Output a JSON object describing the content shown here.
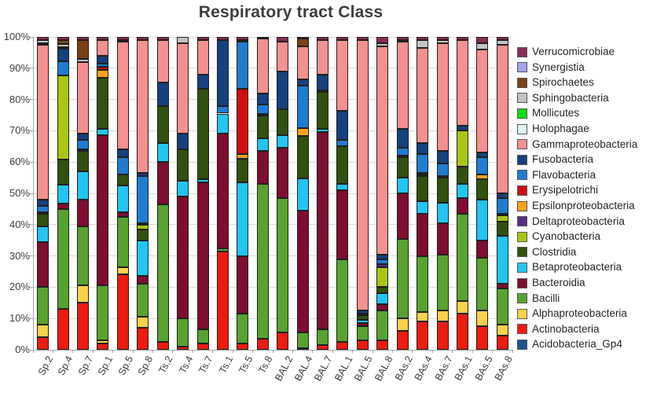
{
  "title": "Respiratory tract Class",
  "chart_data": {
    "type": "bar",
    "stacked": true,
    "unit": "percent",
    "title": "Respiratory tract Class",
    "xlabel": "",
    "ylabel": "",
    "ylim": [
      0,
      100
    ],
    "grid": true,
    "legend_position": "right",
    "y_ticks": [
      "0%",
      "10%",
      "20%",
      "30%",
      "40%",
      "50%",
      "60%",
      "70%",
      "80%",
      "90%",
      "100%"
    ],
    "categories": [
      "Sp.2",
      "Sp.4",
      "Sp.7",
      "Sp.1",
      "Sp.5",
      "Sp.8",
      "Ts.2",
      "Ts.4",
      "Ts.7",
      "Ts.1",
      "Ts.5",
      "Ts.8",
      "BAL.2",
      "BAL.4",
      "BAL.7",
      "BAL.1",
      "BAL.5",
      "BAL.8",
      "BAs.2",
      "BAs.4",
      "BAs.7",
      "BAs.1",
      "BAs.5",
      "BAs.8"
    ],
    "series_note": "series listed in stacking order bottom-to-top; legend displays reverse order; values are percent per sample",
    "series": [
      {
        "name": "Acidobacteria_Gp4",
        "color": "#1A5590",
        "values": [
          0,
          0,
          0,
          0,
          0,
          0,
          0,
          0,
          0,
          0,
          0,
          0,
          0,
          0,
          0,
          0,
          0,
          0,
          0,
          0,
          0,
          0,
          0,
          0
        ]
      },
      {
        "name": "Actinobacteria",
        "color": "#EE1B0F",
        "values": [
          4,
          13,
          15,
          2,
          24,
          7,
          2.5,
          1,
          2,
          31.5,
          2,
          3.5,
          5.5,
          0.5,
          1.5,
          2.5,
          3,
          3,
          6,
          9,
          9,
          11.5,
          7.5,
          4.5
        ]
      },
      {
        "name": "Alphaproteobacteria",
        "color": "#FAD14A",
        "values": [
          4,
          0,
          5.5,
          1,
          2.5,
          3.5,
          0,
          0,
          0,
          0,
          0,
          0,
          0,
          0,
          0,
          0,
          0,
          0,
          4,
          3,
          3.5,
          4,
          5,
          3.5
        ]
      },
      {
        "name": "Bacilli",
        "color": "#58A32F",
        "values": [
          12,
          32,
          19,
          17.5,
          16,
          10.5,
          44,
          9,
          4.5,
          1,
          9.5,
          49.5,
          43,
          5,
          5,
          26.5,
          4.5,
          9.5,
          25.5,
          18,
          18,
          28,
          17,
          11.5
        ]
      },
      {
        "name": "Bacteroidia",
        "color": "#7E0E2F",
        "values": [
          14.5,
          1.8,
          8.5,
          48,
          1.5,
          2.5,
          13.5,
          39,
          47,
          36.5,
          18.5,
          10.5,
          16,
          39,
          63,
          22,
          1,
          2,
          14.5,
          13.5,
          10,
          5,
          5.5,
          1.5
        ]
      },
      {
        "name": "Betaproteobacteria",
        "color": "#22C5F2",
        "values": [
          5,
          6,
          9,
          2,
          8.5,
          11.5,
          6,
          5,
          1,
          6.5,
          23.5,
          4,
          4,
          10.3,
          1,
          2,
          1,
          3.5,
          5,
          4,
          6.5,
          4.5,
          13,
          15.5
        ]
      },
      {
        "name": "Clostridia",
        "color": "#31510F",
        "values": [
          4,
          8,
          6.5,
          16.5,
          3.5,
          3.5,
          12,
          10,
          29,
          0,
          7.5,
          7.5,
          8.5,
          13.5,
          12,
          12,
          1.5,
          2,
          6.5,
          8,
          8,
          5.5,
          6.5,
          4.5
        ]
      },
      {
        "name": "Cyanobacteria",
        "color": "#A8C715",
        "values": [
          0,
          27,
          0,
          0,
          0,
          1.5,
          0,
          0,
          0,
          0,
          0,
          0,
          0,
          0,
          0,
          0,
          0,
          6.5,
          0,
          0.5,
          0,
          11.5,
          0,
          2
        ]
      },
      {
        "name": "Deltaproteobacteria",
        "color": "#5A2D89",
        "values": [
          0.5,
          0,
          0,
          0,
          0,
          0.5,
          0,
          0,
          0,
          0,
          0,
          0,
          0,
          0,
          0,
          0,
          0,
          1,
          0.5,
          0,
          0.5,
          0,
          0,
          0.5
        ]
      },
      {
        "name": "Epsilonproteobacteria",
        "color": "#F9A11B",
        "values": [
          0,
          0,
          0,
          2.5,
          0,
          0,
          0,
          0,
          0,
          0,
          1.5,
          0,
          0,
          2.5,
          0,
          0,
          0,
          0,
          0,
          0.5,
          0,
          0,
          1.5,
          0
        ]
      },
      {
        "name": "Erysipelotrichi",
        "color": "#CE0E11",
        "values": [
          0,
          0,
          0.5,
          1,
          0,
          0,
          0,
          0,
          0,
          0,
          21,
          0.5,
          0,
          0,
          0,
          0,
          0,
          0,
          0,
          0,
          0,
          0,
          0,
          0
        ]
      },
      {
        "name": "Flavobacteria",
        "color": "#1F7DD1",
        "values": [
          2,
          4.5,
          3,
          1,
          5.5,
          15,
          0,
          0,
          0,
          2.5,
          15,
          3,
          0,
          13.5,
          0.5,
          2,
          0.5,
          1.5,
          2.5,
          6,
          4,
          0,
          5.5,
          5
        ]
      },
      {
        "name": "Fusobacteria",
        "color": "#15417E",
        "values": [
          2,
          4,
          2,
          2.5,
          2.5,
          1,
          7.5,
          5,
          4.5,
          21,
          0.5,
          3.5,
          12,
          2.2,
          5,
          9.5,
          1,
          1.5,
          6,
          3.5,
          4,
          1.5,
          1.5,
          1.5
        ]
      },
      {
        "name": "Gammaproteobacteria",
        "color": "#F4918E",
        "values": [
          49.5,
          0,
          23,
          5,
          34.5,
          42.5,
          13.5,
          29,
          11,
          0,
          0,
          17.5,
          9.5,
          10.5,
          11,
          22.5,
          86.5,
          66.5,
          28,
          30.5,
          34.5,
          27.5,
          33,
          47.5
        ]
      },
      {
        "name": "Holophagae",
        "color": "#DEF5F7",
        "values": [
          0.5,
          0.5,
          0,
          0,
          0,
          0,
          0,
          0,
          0,
          0,
          0,
          0,
          0,
          0,
          0,
          0,
          0,
          0,
          0,
          0,
          0,
          0,
          0,
          0
        ]
      },
      {
        "name": "Mollicutes",
        "color": "#12DD12",
        "values": [
          0,
          0,
          0,
          0,
          0,
          0,
          0,
          0,
          0,
          0,
          0,
          0,
          0,
          0,
          0,
          0,
          0,
          0,
          0,
          0,
          0,
          0,
          0,
          0
        ]
      },
      {
        "name": "Sphingobacteria",
        "color": "#C3C3C3",
        "values": [
          1,
          1,
          1,
          0,
          0.5,
          0,
          0,
          2,
          0,
          0,
          0,
          0,
          0,
          0,
          0,
          0,
          0,
          1,
          0.5,
          2.5,
          1,
          0,
          2,
          1.5
        ]
      },
      {
        "name": "Spirochaetes",
        "color": "#7C4116",
        "values": [
          0,
          1.2,
          6,
          0,
          0,
          0,
          0,
          0,
          0,
          0,
          0,
          0,
          0,
          2.5,
          0,
          0,
          0,
          0,
          0,
          0,
          0,
          0,
          0,
          0
        ]
      },
      {
        "name": "Synergistia",
        "color": "#A4A4F0",
        "values": [
          0,
          0,
          0,
          0,
          0,
          0,
          0,
          0,
          0,
          0,
          0,
          0,
          0,
          0,
          0,
          0,
          0,
          0,
          0,
          0,
          0,
          0,
          0,
          0
        ]
      },
      {
        "name": "Verrucomicrobiae",
        "color": "#8C2B57",
        "values": [
          1,
          1,
          1,
          1,
          1,
          1,
          1,
          0,
          1,
          1,
          1,
          0.5,
          1.5,
          0.5,
          1,
          1,
          1,
          2,
          1,
          1,
          1,
          1,
          2,
          1
        ]
      }
    ]
  }
}
